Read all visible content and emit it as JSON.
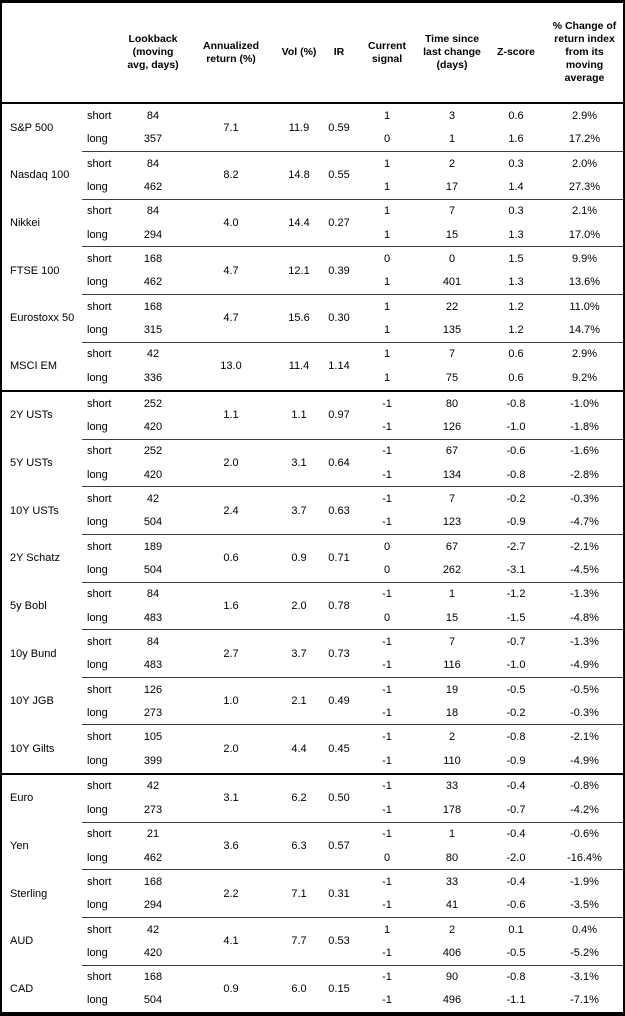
{
  "table": {
    "column_headers": [
      "Lookback (moving avg, days)",
      "Annualized return (%)",
      "Vol (%)",
      "IR",
      "Current signal",
      "Time since last change (days)",
      "Z-score",
      "% Change of return index from its moving average"
    ],
    "groups": [
      {
        "assets": [
          {
            "name": "S&P 500",
            "annualized_return": "7.1",
            "vol": "11.9",
            "ir": "0.59",
            "rows": [
              {
                "leg": "short",
                "lookback": "84",
                "signal": "1",
                "time_since": "3",
                "zscore": "0.6",
                "pct_change": "2.9%"
              },
              {
                "leg": "long",
                "lookback": "357",
                "signal": "0",
                "time_since": "1",
                "zscore": "1.6",
                "pct_change": "17.2%"
              }
            ]
          },
          {
            "name": "Nasdaq 100",
            "annualized_return": "8.2",
            "vol": "14.8",
            "ir": "0.55",
            "rows": [
              {
                "leg": "short",
                "lookback": "84",
                "signal": "1",
                "time_since": "2",
                "zscore": "0.3",
                "pct_change": "2.0%"
              },
              {
                "leg": "long",
                "lookback": "462",
                "signal": "1",
                "time_since": "17",
                "zscore": "1.4",
                "pct_change": "27.3%"
              }
            ]
          },
          {
            "name": "Nikkei",
            "annualized_return": "4.0",
            "vol": "14.4",
            "ir": "0.27",
            "rows": [
              {
                "leg": "short",
                "lookback": "84",
                "signal": "1",
                "time_since": "7",
                "zscore": "0.3",
                "pct_change": "2.1%"
              },
              {
                "leg": "long",
                "lookback": "294",
                "signal": "1",
                "time_since": "15",
                "zscore": "1.3",
                "pct_change": "17.0%"
              }
            ]
          },
          {
            "name": "FTSE 100",
            "annualized_return": "4.7",
            "vol": "12.1",
            "ir": "0.39",
            "rows": [
              {
                "leg": "short",
                "lookback": "168",
                "signal": "0",
                "time_since": "0",
                "zscore": "1.5",
                "pct_change": "9.9%"
              },
              {
                "leg": "long",
                "lookback": "462",
                "signal": "1",
                "time_since": "401",
                "zscore": "1.3",
                "pct_change": "13.6%"
              }
            ]
          },
          {
            "name": "Eurostoxx 50",
            "annualized_return": "4.7",
            "vol": "15.6",
            "ir": "0.30",
            "rows": [
              {
                "leg": "short",
                "lookback": "168",
                "signal": "1",
                "time_since": "22",
                "zscore": "1.2",
                "pct_change": "11.0%"
              },
              {
                "leg": "long",
                "lookback": "315",
                "signal": "1",
                "time_since": "135",
                "zscore": "1.2",
                "pct_change": "14.7%"
              }
            ]
          },
          {
            "name": "MSCI EM",
            "annualized_return": "13.0",
            "vol": "11.4",
            "ir": "1.14",
            "rows": [
              {
                "leg": "short",
                "lookback": "42",
                "signal": "1",
                "time_since": "7",
                "zscore": "0.6",
                "pct_change": "2.9%"
              },
              {
                "leg": "long",
                "lookback": "336",
                "signal": "1",
                "time_since": "75",
                "zscore": "0.6",
                "pct_change": "9.2%"
              }
            ]
          }
        ]
      },
      {
        "assets": [
          {
            "name": "2Y USTs",
            "annualized_return": "1.1",
            "vol": "1.1",
            "ir": "0.97",
            "rows": [
              {
                "leg": "short",
                "lookback": "252",
                "signal": "-1",
                "time_since": "80",
                "zscore": "-0.8",
                "pct_change": "-1.0%"
              },
              {
                "leg": "long",
                "lookback": "420",
                "signal": "-1",
                "time_since": "126",
                "zscore": "-1.0",
                "pct_change": "-1.8%"
              }
            ]
          },
          {
            "name": "5Y USTs",
            "annualized_return": "2.0",
            "vol": "3.1",
            "ir": "0.64",
            "rows": [
              {
                "leg": "short",
                "lookback": "252",
                "signal": "-1",
                "time_since": "67",
                "zscore": "-0.6",
                "pct_change": "-1.6%"
              },
              {
                "leg": "long",
                "lookback": "420",
                "signal": "-1",
                "time_since": "134",
                "zscore": "-0.8",
                "pct_change": "-2.8%"
              }
            ]
          },
          {
            "name": "10Y USTs",
            "annualized_return": "2.4",
            "vol": "3.7",
            "ir": "0.63",
            "rows": [
              {
                "leg": "short",
                "lookback": "42",
                "signal": "-1",
                "time_since": "7",
                "zscore": "-0.2",
                "pct_change": "-0.3%"
              },
              {
                "leg": "long",
                "lookback": "504",
                "signal": "-1",
                "time_since": "123",
                "zscore": "-0.9",
                "pct_change": "-4.7%"
              }
            ]
          },
          {
            "name": "2Y Schatz",
            "annualized_return": "0.6",
            "vol": "0.9",
            "ir": "0.71",
            "rows": [
              {
                "leg": "short",
                "lookback": "189",
                "signal": "0",
                "time_since": "67",
                "zscore": "-2.7",
                "pct_change": "-2.1%"
              },
              {
                "leg": "long",
                "lookback": "504",
                "signal": "0",
                "time_since": "262",
                "zscore": "-3.1",
                "pct_change": "-4.5%"
              }
            ]
          },
          {
            "name": "5y Bobl",
            "annualized_return": "1.6",
            "vol": "2.0",
            "ir": "0.78",
            "rows": [
              {
                "leg": "short",
                "lookback": "84",
                "signal": "-1",
                "time_since": "1",
                "zscore": "-1.2",
                "pct_change": "-1.3%"
              },
              {
                "leg": "long",
                "lookback": "483",
                "signal": "0",
                "time_since": "15",
                "zscore": "-1.5",
                "pct_change": "-4.8%"
              }
            ]
          },
          {
            "name": "10y Bund",
            "annualized_return": "2.7",
            "vol": "3.7",
            "ir": "0.73",
            "rows": [
              {
                "leg": "short",
                "lookback": "84",
                "signal": "-1",
                "time_since": "7",
                "zscore": "-0.7",
                "pct_change": "-1.3%"
              },
              {
                "leg": "long",
                "lookback": "483",
                "signal": "-1",
                "time_since": "116",
                "zscore": "-1.0",
                "pct_change": "-4.9%"
              }
            ]
          },
          {
            "name": "10Y JGB",
            "annualized_return": "1.0",
            "vol": "2.1",
            "ir": "0.49",
            "rows": [
              {
                "leg": "short",
                "lookback": "126",
                "signal": "-1",
                "time_since": "19",
                "zscore": "-0.5",
                "pct_change": "-0.5%"
              },
              {
                "leg": "long",
                "lookback": "273",
                "signal": "-1",
                "time_since": "18",
                "zscore": "-0.2",
                "pct_change": "-0.3%"
              }
            ]
          },
          {
            "name": "10Y Gilts",
            "annualized_return": "2.0",
            "vol": "4.4",
            "ir": "0.45",
            "rows": [
              {
                "leg": "short",
                "lookback": "105",
                "signal": "-1",
                "time_since": "2",
                "zscore": "-0.8",
                "pct_change": "-2.1%"
              },
              {
                "leg": "long",
                "lookback": "399",
                "signal": "-1",
                "time_since": "110",
                "zscore": "-0.9",
                "pct_change": "-4.9%"
              }
            ]
          }
        ]
      },
      {
        "assets": [
          {
            "name": "Euro",
            "annualized_return": "3.1",
            "vol": "6.2",
            "ir": "0.50",
            "rows": [
              {
                "leg": "short",
                "lookback": "42",
                "signal": "-1",
                "time_since": "33",
                "zscore": "-0.4",
                "pct_change": "-0.8%"
              },
              {
                "leg": "long",
                "lookback": "273",
                "signal": "-1",
                "time_since": "178",
                "zscore": "-0.7",
                "pct_change": "-4.2%"
              }
            ]
          },
          {
            "name": "Yen",
            "annualized_return": "3.6",
            "vol": "6.3",
            "ir": "0.57",
            "rows": [
              {
                "leg": "short",
                "lookback": "21",
                "signal": "-1",
                "time_since": "1",
                "zscore": "-0.4",
                "pct_change": "-0.6%"
              },
              {
                "leg": "long",
                "lookback": "462",
                "signal": "0",
                "time_since": "80",
                "zscore": "-2.0",
                "pct_change": "-16.4%"
              }
            ]
          },
          {
            "name": "Sterling",
            "annualized_return": "2.2",
            "vol": "7.1",
            "ir": "0.31",
            "rows": [
              {
                "leg": "short",
                "lookback": "168",
                "signal": "-1",
                "time_since": "33",
                "zscore": "-0.4",
                "pct_change": "-1.9%"
              },
              {
                "leg": "long",
                "lookback": "294",
                "signal": "-1",
                "time_since": "41",
                "zscore": "-0.6",
                "pct_change": "-3.5%"
              }
            ]
          },
          {
            "name": "AUD",
            "annualized_return": "4.1",
            "vol": "7.7",
            "ir": "0.53",
            "rows": [
              {
                "leg": "short",
                "lookback": "42",
                "signal": "1",
                "time_since": "2",
                "zscore": "0.1",
                "pct_change": "0.4%"
              },
              {
                "leg": "long",
                "lookback": "420",
                "signal": "-1",
                "time_since": "406",
                "zscore": "-0.5",
                "pct_change": "-5.2%"
              }
            ]
          },
          {
            "name": "CAD",
            "annualized_return": "0.9",
            "vol": "6.0",
            "ir": "0.15",
            "rows": [
              {
                "leg": "short",
                "lookback": "168",
                "signal": "-1",
                "time_since": "90",
                "zscore": "-0.8",
                "pct_change": "-3.1%"
              },
              {
                "leg": "long",
                "lookback": "504",
                "signal": "-1",
                "time_since": "496",
                "zscore": "-1.1",
                "pct_change": "-7.1%"
              }
            ]
          }
        ]
      }
    ]
  }
}
